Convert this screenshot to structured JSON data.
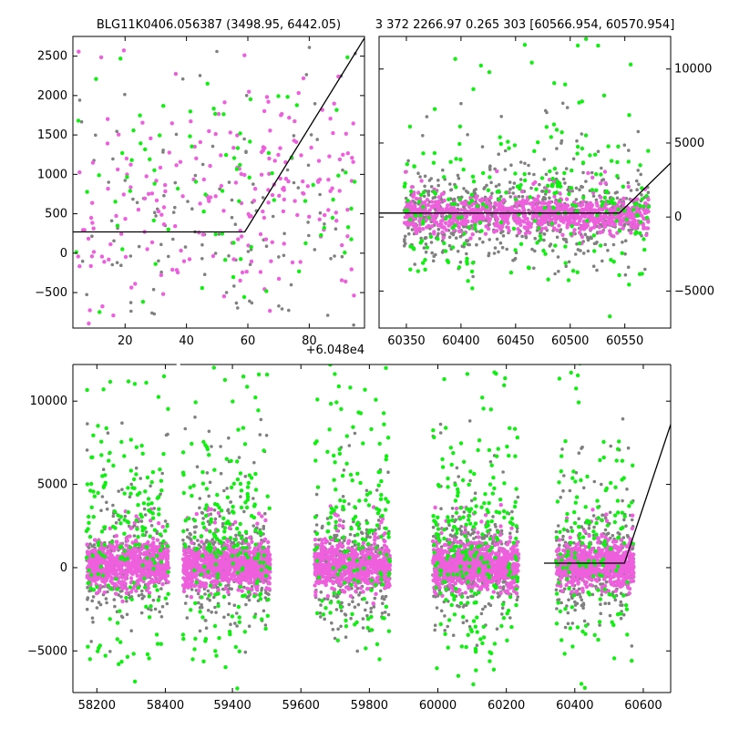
{
  "figure": {
    "title_left": "BLG11K0406.056387 (3498.95, 6442.05)",
    "title_right": "3 372 2266.97 0.265 303 [60566.954, 60570.954]",
    "offset_label": "+6.048e4"
  },
  "colors": {
    "gray": "#808080",
    "magenta": "#ee5fdd",
    "green": "#11ee11",
    "model": "#000000"
  },
  "chart_data": [
    {
      "type": "scatter",
      "panel": "top-left",
      "x_offset": 60480,
      "xlim": [
        3,
        98
      ],
      "ylim": [
        -950,
        2750
      ],
      "xticks": [
        20,
        40,
        60,
        80
      ],
      "xtick_labels": [
        "20",
        "40",
        "60",
        "80"
      ],
      "yticks": [
        -500,
        0,
        500,
        1000,
        1500,
        2000,
        2500
      ],
      "ytick_labels": [
        "−500",
        "0",
        "500",
        "1000",
        "1500",
        "2000",
        "2500"
      ],
      "model": {
        "x": [
          3,
          59,
          98
        ],
        "y": [
          270,
          270,
          2730
        ]
      },
      "series": [
        {
          "color": "gray",
          "count": 130,
          "x_range": [
            4,
            95
          ],
          "base": 300,
          "trend": 0.5,
          "spread": 700,
          "outlier_prob": 0.12
        },
        {
          "color": "magenta",
          "count": 230,
          "x_range": [
            4,
            95
          ],
          "base": 400,
          "trend": 0.6,
          "spread": 600,
          "outlier_prob": 0.15
        },
        {
          "color": "green",
          "count": 90,
          "x_range": [
            4,
            95
          ],
          "base": 500,
          "trend": 0.6,
          "spread": 800,
          "outlier_prob": 0.15
        }
      ]
    },
    {
      "type": "scatter",
      "panel": "top-right",
      "xlim": [
        60325,
        60592
      ],
      "ylim": [
        -7500,
        12200
      ],
      "xticks": [
        60350,
        60400,
        60450,
        60500,
        60550
      ],
      "xtick_labels": [
        "60350",
        "60400",
        "60450",
        "60500",
        "60550"
      ],
      "yticks": [
        -5000,
        0,
        5000,
        10000
      ],
      "ytick_labels": [
        "−5000",
        "0",
        "5000",
        "10000"
      ],
      "model": {
        "x": [
          60325,
          60545,
          60592
        ],
        "y": [
          270,
          270,
          3650
        ]
      },
      "series": [
        {
          "color": "gray",
          "count": 700,
          "x_range": [
            60348,
            60572
          ],
          "base": 100,
          "spread": 1500,
          "outlier_prob": 0.08
        },
        {
          "color": "magenta",
          "count": 900,
          "x_range": [
            60348,
            60572
          ],
          "base": 150,
          "spread": 600,
          "outlier_prob": 0.05
        },
        {
          "color": "green",
          "count": 260,
          "x_range": [
            60348,
            60572
          ],
          "base": 800,
          "spread": 2500,
          "outlier_prob": 0.2
        }
      ]
    },
    {
      "type": "scatter",
      "panel": "bottom",
      "broken_axis": true,
      "xlim": [
        58130,
        60680
      ],
      "break": [
        58430,
        59250
      ],
      "ylim": [
        -7500,
        12200
      ],
      "xticks": [
        58200,
        58400,
        59400,
        59600,
        59800,
        60000,
        60200,
        60400,
        60600
      ],
      "xtick_labels": [
        "58200",
        "58400",
        "59400",
        "59600",
        "59800",
        "60000",
        "60200",
        "60400",
        "60600"
      ],
      "yticks": [
        -5000,
        0,
        5000,
        10000
      ],
      "ytick_labels": [
        "−5000",
        "0",
        "5000",
        "10000"
      ],
      "model": {
        "x": [
          60310,
          60545,
          60680
        ],
        "y": [
          270,
          270,
          8600
        ]
      },
      "seasons": [
        {
          "x_range": [
            58170,
            58410
          ],
          "counts": [
            300,
            700,
            200
          ]
        },
        {
          "x_range": [
            59255,
            59510
          ],
          "counts": [
            350,
            800,
            230
          ]
        },
        {
          "x_range": [
            59640,
            59860
          ],
          "counts": [
            300,
            700,
            180
          ]
        },
        {
          "x_range": [
            59985,
            60235
          ],
          "counts": [
            380,
            900,
            260
          ]
        },
        {
          "x_range": [
            60345,
            60572
          ],
          "counts": [
            300,
            700,
            160
          ]
        }
      ],
      "series": [
        {
          "color": "gray",
          "base": 100,
          "spread": 1600,
          "outlier_prob": 0.1
        },
        {
          "color": "magenta",
          "base": 150,
          "spread": 650,
          "outlier_prob": 0.06
        },
        {
          "color": "green",
          "base": 1500,
          "spread": 3000,
          "outlier_prob": 0.25
        }
      ]
    }
  ]
}
